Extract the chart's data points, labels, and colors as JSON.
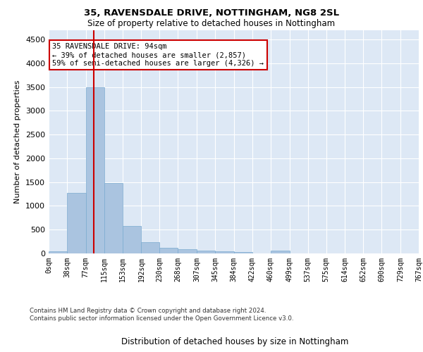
{
  "title": "35, RAVENSDALE DRIVE, NOTTINGHAM, NG8 2SL",
  "subtitle": "Size of property relative to detached houses in Nottingham",
  "xlabel": "Distribution of detached houses by size in Nottingham",
  "ylabel": "Number of detached properties",
  "bar_color": "#aac4e0",
  "bar_edge_color": "#7aaad0",
  "background_color": "#dde8f5",
  "grid_color": "#ffffff",
  "red_line_x": 94,
  "annotation_text": "35 RAVENSDALE DRIVE: 94sqm\n← 39% of detached houses are smaller (2,857)\n59% of semi-detached houses are larger (4,326) →",
  "annotation_box_color": "#ffffff",
  "annotation_box_edge": "#cc0000",
  "red_line_color": "#cc0000",
  "footer_text": "Contains HM Land Registry data © Crown copyright and database right 2024.\nContains public sector information licensed under the Open Government Licence v3.0.",
  "bin_edges": [
    0,
    38,
    77,
    115,
    153,
    192,
    230,
    268,
    307,
    345,
    384,
    422,
    460,
    499,
    537,
    575,
    614,
    652,
    690,
    729,
    767
  ],
  "bin_labels": [
    "0sqm",
    "38sqm",
    "77sqm",
    "115sqm",
    "153sqm",
    "192sqm",
    "230sqm",
    "268sqm",
    "307sqm",
    "345sqm",
    "384sqm",
    "422sqm",
    "460sqm",
    "499sqm",
    "537sqm",
    "575sqm",
    "614sqm",
    "652sqm",
    "690sqm",
    "729sqm",
    "767sqm"
  ],
  "bar_heights": [
    50,
    1280,
    3500,
    1480,
    580,
    240,
    120,
    90,
    60,
    40,
    30,
    0,
    55,
    0,
    0,
    0,
    0,
    0,
    0,
    0
  ],
  "ylim": [
    0,
    4700
  ],
  "yticks": [
    0,
    500,
    1000,
    1500,
    2000,
    2500,
    3000,
    3500,
    4000,
    4500
  ]
}
